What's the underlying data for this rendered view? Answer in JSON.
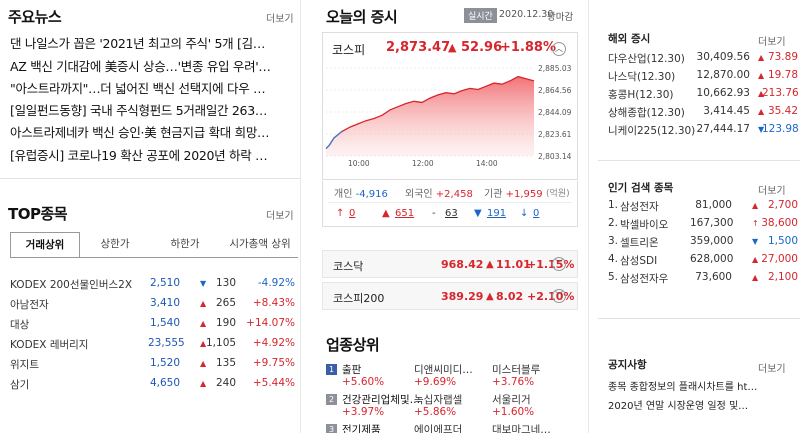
{
  "left": {
    "news_title": "주요뉴스",
    "more": "더보기",
    "news": [
      "댄 나일스가 꼽은 '2021년 최고의 주식' 5개 [김…",
      "AZ 백신 기대감에 美증시 상승…'변종 유입 우려'…",
      "\"아스트라까지\"…더 넓어진 백신 선택지에 다우 …",
      "[일일펀드동향] 국내 주식형펀드 5거래일간 263…",
      "아스트라제네카 백신 승인·美 현금지급 확대 희망…",
      "[유럽증시] 코로나19 확산 공포에 2020년 하락 …"
    ],
    "top_title": "TOP종목",
    "tabs": [
      "거래상위",
      "상한가",
      "하한가",
      "시가총액 상위"
    ],
    "stocks": [
      {
        "name": "KODEX 200선물인버스2X",
        "price": "2,510",
        "dir": "down",
        "arrow": "▼",
        "change": "130",
        "rate": "-4.92%"
      },
      {
        "name": "아남전자",
        "price": "3,410",
        "dir": "up",
        "arrow": "▲",
        "change": "265",
        "rate": "+8.43%"
      },
      {
        "name": "대상",
        "price": "1,540",
        "dir": "up",
        "arrow": "▲",
        "change": "190",
        "rate": "+14.07%"
      },
      {
        "name": "KODEX 레버리지",
        "price": "23,555",
        "dir": "up",
        "arrow": "▲",
        "change": "1,105",
        "rate": "+4.92%"
      },
      {
        "name": "위지트",
        "price": "1,520",
        "dir": "up",
        "arrow": "▲",
        "change": "135",
        "rate": "+9.75%"
      },
      {
        "name": "삼기",
        "price": "4,650",
        "dir": "up",
        "arrow": "▲",
        "change": "240",
        "rate": "+5.44%"
      }
    ]
  },
  "mid": {
    "title": "오늘의 증시",
    "badge": "실시간",
    "date": "2020.12.30",
    "status": "장마감",
    "kospi": {
      "name": "코스피",
      "value": "2,873.47",
      "arrow": "▲",
      "change": "52.96",
      "rate": "+1.88%"
    },
    "chart_data": {
      "type": "area",
      "x_ticks": [
        "10:00",
        "12:00",
        "14:00"
      ],
      "y_ticks": [
        "2,885.03",
        "2,864.56",
        "2,844.09",
        "2,823.61",
        "2,803.14"
      ],
      "ylim": [
        2803.14,
        2885.03
      ],
      "xlim": [
        9.0,
        15.5
      ],
      "x": [
        9.0,
        9.1,
        9.25,
        9.5,
        9.75,
        10.0,
        10.25,
        10.5,
        10.75,
        11.0,
        11.25,
        11.5,
        11.75,
        12.0,
        12.25,
        12.5,
        12.75,
        13.0,
        13.25,
        13.5,
        13.75,
        14.0,
        14.25,
        14.5,
        14.75,
        15.0,
        15.25,
        15.5
      ],
      "y": [
        2810,
        2813,
        2820,
        2826,
        2830,
        2833,
        2836,
        2838,
        2841,
        2846,
        2849,
        2852,
        2854,
        2853,
        2857,
        2860,
        2862,
        2861,
        2864,
        2866,
        2865,
        2868,
        2871,
        2870,
        2873,
        2877,
        2875,
        2873
      ]
    },
    "investors": [
      {
        "label": "개인",
        "value": "-4,916",
        "dir": "down"
      },
      {
        "label": "외국인",
        "value": "+2,458",
        "dir": "up"
      },
      {
        "label": "기관",
        "value": "+1,959",
        "dir": "up"
      }
    ],
    "investor_unit": "(억원)",
    "breadth": [
      {
        "arrow": "↑",
        "value": "0",
        "dir": "up"
      },
      {
        "arrow": "▲",
        "value": "651",
        "dir": "up"
      },
      {
        "arrow": "-",
        "value": "63",
        "dir": "flat"
      },
      {
        "arrow": "▼",
        "value": "191",
        "dir": "down"
      },
      {
        "arrow": "↓",
        "value": "0",
        "dir": "down"
      }
    ],
    "kosdaq": {
      "name": "코스닥",
      "value": "968.42",
      "arrow": "▲",
      "change": "11.01",
      "rate": "+1.15%"
    },
    "kospi200": {
      "name": "코스피200",
      "value": "389.29",
      "arrow": "▲",
      "change": "8.02",
      "rate": "+2.10%"
    },
    "sector_title": "업종상위",
    "sectors": [
      {
        "rank": "1",
        "name": "출판",
        "rate": "+5.60%"
      },
      {
        "rank": "",
        "name": "디앤씨미디…",
        "rate": "+9.69%"
      },
      {
        "rank": "",
        "name": "미스터블루",
        "rate": "+3.76%"
      },
      {
        "rank": "2",
        "name": "건강관리업체및…",
        "rate": "+3.97%"
      },
      {
        "rank": "",
        "name": "녹십자랩셀",
        "rate": "+5.86%"
      },
      {
        "rank": "",
        "name": "서울리거",
        "rate": "+1.60%"
      },
      {
        "rank": "3",
        "name": "전기제품",
        "rate": ""
      },
      {
        "rank": "",
        "name": "에이에프더",
        "rate": ""
      },
      {
        "rank": "",
        "name": "대보마그네…",
        "rate": ""
      }
    ]
  },
  "right": {
    "overseas_title": "해외 증시",
    "more": "더보기",
    "overseas": [
      {
        "name": "다우산업(12.30)",
        "value": "30,409.56",
        "dir": "up",
        "arrow": "▲",
        "change": "73.89"
      },
      {
        "name": "나스닥(12.30)",
        "value": "12,870.00",
        "dir": "up",
        "arrow": "▲",
        "change": "19.78"
      },
      {
        "name": "홍콩H(12.30)",
        "value": "10,662.93",
        "dir": "up",
        "arrow": "▲",
        "change": "213.76"
      },
      {
        "name": "상해종합(12.30)",
        "value": "3,414.45",
        "dir": "up",
        "arrow": "▲",
        "change": "35.42"
      },
      {
        "name": "니케이225(12.30)",
        "value": "27,444.17",
        "dir": "down",
        "arrow": "▼",
        "change": "123.98"
      }
    ],
    "popular_title": "인기 검색 종목",
    "popular": [
      {
        "rank": "1.",
        "name": "삼성전자",
        "price": "81,000",
        "dir": "up",
        "arrow": "▲",
        "change": "2,700"
      },
      {
        "rank": "2.",
        "name": "박셀바이오",
        "price": "167,300",
        "dir": "up",
        "arrow": "↑",
        "change": "38,600"
      },
      {
        "rank": "3.",
        "name": "셀트리온",
        "price": "359,000",
        "dir": "down",
        "arrow": "▼",
        "change": "1,500"
      },
      {
        "rank": "4.",
        "name": "삼성SDI",
        "price": "628,000",
        "dir": "up",
        "arrow": "▲",
        "change": "27,000"
      },
      {
        "rank": "5.",
        "name": "삼성전자우",
        "price": "73,600",
        "dir": "up",
        "arrow": "▲",
        "change": "2,100"
      }
    ],
    "notice_title": "공지사항",
    "notices": [
      "종목 종합정보의 플래시차트를 ht…",
      "2020년 연말 시장운영 일정 및…"
    ]
  }
}
